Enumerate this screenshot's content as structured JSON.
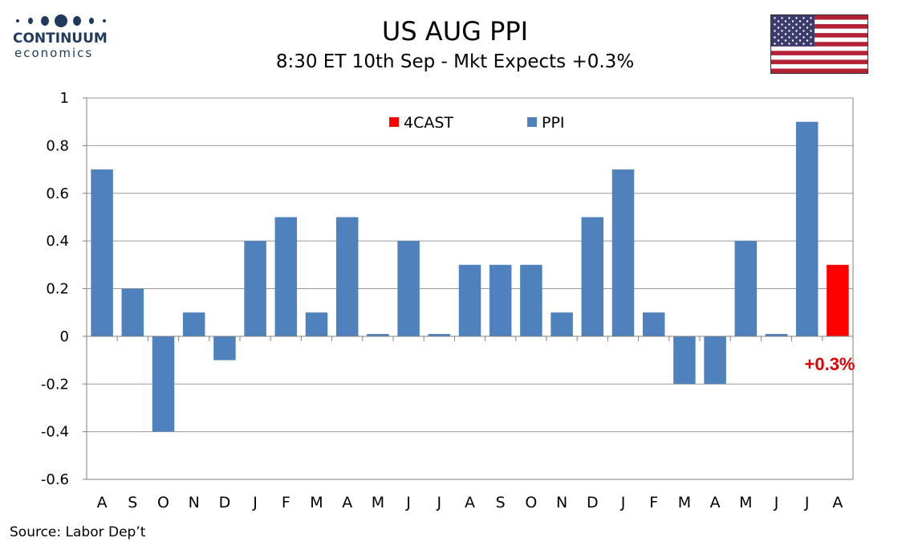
{
  "logo": {
    "word": "CONTINUUM",
    "sub": "economics"
  },
  "header": {
    "title": "US AUG PPI",
    "subtitle": "8:30 ET 10th Sep - Mkt Expects +0.3%"
  },
  "flag": {
    "name": "us-flag-icon"
  },
  "footer": {
    "source": "Source: Labor Dep’t"
  },
  "colors": {
    "ppi": "#4f81bd",
    "forecast": "#ff0000",
    "annotation": "#e00000",
    "grid": "#999999"
  },
  "chart_data": {
    "type": "bar",
    "categories": [
      "A",
      "S",
      "O",
      "N",
      "D",
      "J",
      "F",
      "M",
      "A",
      "M",
      "J",
      "J",
      "A",
      "S",
      "O",
      "N",
      "D",
      "J",
      "F",
      "M",
      "A",
      "M",
      "J",
      "J",
      "A"
    ],
    "series": [
      {
        "name": "4CAST",
        "values": [
          null,
          null,
          null,
          null,
          null,
          null,
          null,
          null,
          null,
          null,
          null,
          null,
          null,
          null,
          null,
          null,
          null,
          null,
          null,
          null,
          null,
          null,
          null,
          null,
          0.3
        ]
      },
      {
        "name": "PPI",
        "values": [
          0.7,
          0.2,
          -0.4,
          0.1,
          -0.1,
          0.4,
          0.5,
          0.1,
          0.5,
          0.01,
          0.4,
          0.01,
          0.3,
          0.3,
          0.3,
          0.1,
          0.5,
          0.7,
          0.1,
          -0.2,
          -0.2,
          0.4,
          0.01,
          0.9,
          null
        ]
      }
    ],
    "ylim": [
      -0.6,
      1
    ],
    "yticks": [
      1,
      0.8,
      0.6,
      0.4,
      0.2,
      0,
      -0.2,
      -0.4,
      -0.6
    ],
    "ytick_labels": [
      "1",
      "0.8",
      "0.6",
      "0.4",
      "0.2",
      "0",
      "-0.2",
      "-0.4",
      "-0.6"
    ],
    "legend": [
      "4CAST",
      "PPI"
    ],
    "legend_position": "top-center",
    "grid": true,
    "annotation": "+0.3%"
  }
}
